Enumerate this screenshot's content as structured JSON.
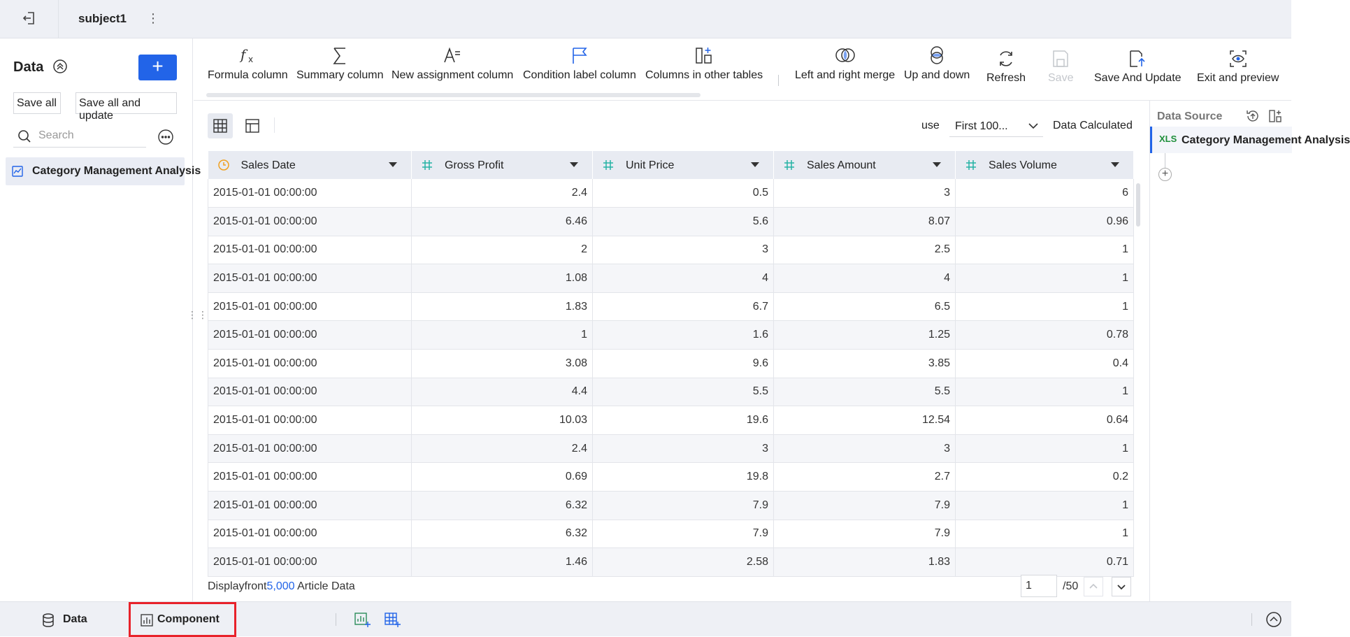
{
  "topbar": {
    "title": "subject1",
    "back_icon": "exit-icon",
    "more_icon": "more-vertical-icon"
  },
  "left": {
    "heading": "Data",
    "add_label": "+",
    "save_all": "Save all",
    "save_all_update": "Save all and update",
    "search_placeholder": "Search",
    "item": "Category Management Analysis"
  },
  "toolbar": {
    "formula": "Formula column",
    "summary": "Summary column",
    "assignment": "New assignment column",
    "condition": "Condition label column",
    "other_tables": "Columns in other tables",
    "lr_merge": "Left and right merge",
    "up_down": "Up and down",
    "refresh": "Refresh",
    "save": "Save",
    "save_update": "Save And Update",
    "exit_preview": "Exit and preview"
  },
  "controls": {
    "use_label": "use",
    "use_value": "First 100...",
    "calc_label": "Data Calculated"
  },
  "table": {
    "columns": [
      "Sales Date",
      "Gross Profit",
      "Unit Price",
      "Sales Amount",
      "Sales Volume"
    ],
    "rows": [
      [
        "2015-01-01 00:00:00",
        "2.4",
        "0.5",
        "3",
        "6"
      ],
      [
        "2015-01-01 00:00:00",
        "6.46",
        "5.6",
        "8.07",
        "0.96"
      ],
      [
        "2015-01-01 00:00:00",
        "2",
        "3",
        "2.5",
        "1"
      ],
      [
        "2015-01-01 00:00:00",
        "1.08",
        "4",
        "4",
        "1"
      ],
      [
        "2015-01-01 00:00:00",
        "1.83",
        "6.7",
        "6.5",
        "1"
      ],
      [
        "2015-01-01 00:00:00",
        "1",
        "1.6",
        "1.25",
        "0.78"
      ],
      [
        "2015-01-01 00:00:00",
        "3.08",
        "9.6",
        "3.85",
        "0.4"
      ],
      [
        "2015-01-01 00:00:00",
        "4.4",
        "5.5",
        "5.5",
        "1"
      ],
      [
        "2015-01-01 00:00:00",
        "10.03",
        "19.6",
        "12.54",
        "0.64"
      ],
      [
        "2015-01-01 00:00:00",
        "2.4",
        "3",
        "3",
        "1"
      ],
      [
        "2015-01-01 00:00:00",
        "0.69",
        "19.8",
        "2.7",
        "0.2"
      ],
      [
        "2015-01-01 00:00:00",
        "6.32",
        "7.9",
        "7.9",
        "1"
      ],
      [
        "2015-01-01 00:00:00",
        "6.32",
        "7.9",
        "7.9",
        "1"
      ],
      [
        "2015-01-01 00:00:00",
        "1.46",
        "2.58",
        "1.83",
        "0.71"
      ]
    ]
  },
  "footer": {
    "prefix": "Displayfront",
    "count": "5,000",
    "suffix": "Article Data",
    "page": "1",
    "total": "/50"
  },
  "right": {
    "heading": "Data Source",
    "file_badge": "XLS",
    "item": "Category Management Analysis"
  },
  "bottom": {
    "data_tab": "Data",
    "component_tab": "Component"
  },
  "colors": {
    "accent": "#2264e8",
    "highlight": "#e8222a",
    "date_icon": "#f0a020",
    "num_icon": "#26b3a5"
  }
}
